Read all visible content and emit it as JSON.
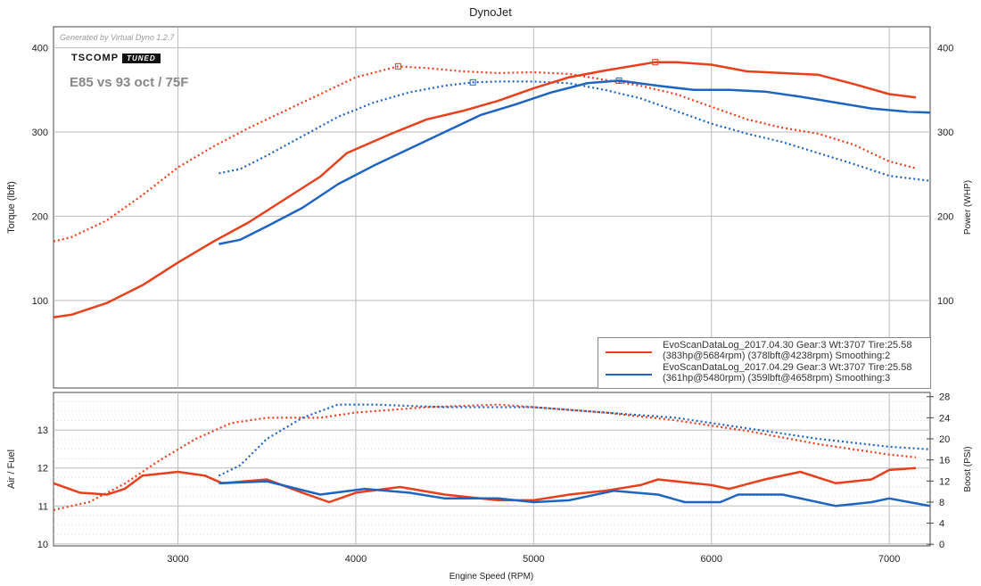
{
  "title": "DynoJet",
  "generated": "Generated by Virtual Dyno 1.2.7",
  "logo": {
    "brand": "TSCOMP",
    "tag": "TUNED"
  },
  "subtitle": "E85 vs 93 oct / 75F",
  "legend": [
    {
      "line1": "EvoScanDataLog_2017.04.30 Gear:3 Wt:3707 Tire:25.58",
      "line2": "(383hp@5684rpm) (378lbft@4238rpm) Smoothing:2",
      "color": "#e8401c"
    },
    {
      "line1": "EvoScanDataLog_2017.04.29 Gear:3 Wt:3707 Tire:25.58",
      "line2": "(361hp@5480rpm) (359lbft@4658rpm) Smoothing:3",
      "color": "#1f64c0"
    }
  ],
  "chart_data": [
    {
      "type": "line",
      "title": "DynoJet",
      "xlabel": "Engine Speed (RPM)",
      "ylabel": "Torque (lbft)",
      "y2label": "Power (WHP)",
      "xlim": [
        2300,
        7230
      ],
      "ylim": [
        -4,
        425
      ],
      "xticks": [
        3000,
        4000,
        5000,
        6000,
        7000
      ],
      "yticks": [
        100,
        200,
        300,
        400
      ],
      "series": [
        {
          "name": "Torque 2017.04.30",
          "color": "#e8401c",
          "dash": true,
          "peak": [
            4238,
            378
          ],
          "points": [
            [
              2300,
              170
            ],
            [
              2400,
              175
            ],
            [
              2600,
              195
            ],
            [
              2800,
              225
            ],
            [
              3000,
              258
            ],
            [
              3200,
              283
            ],
            [
              3400,
              305
            ],
            [
              3600,
              325
            ],
            [
              3800,
              345
            ],
            [
              4000,
              365
            ],
            [
              4238,
              378
            ],
            [
              4400,
              376
            ],
            [
              4600,
              372
            ],
            [
              4800,
              370
            ],
            [
              5000,
              371
            ],
            [
              5200,
              369
            ],
            [
              5400,
              362
            ],
            [
              5600,
              355
            ],
            [
              5800,
              345
            ],
            [
              6000,
              330
            ],
            [
              6200,
              315
            ],
            [
              6400,
              305
            ],
            [
              6600,
              298
            ],
            [
              6800,
              285
            ],
            [
              7000,
              265
            ],
            [
              7150,
              257
            ]
          ]
        },
        {
          "name": "Torque 2017.04.29",
          "color": "#1f64c0",
          "dash": true,
          "peak": [
            4658,
            359
          ],
          "points": [
            [
              3230,
              251
            ],
            [
              3350,
              256
            ],
            [
              3500,
              272
            ],
            [
              3700,
              295
            ],
            [
              3900,
              318
            ],
            [
              4100,
              335
            ],
            [
              4300,
              347
            ],
            [
              4500,
              355
            ],
            [
              4658,
              359
            ],
            [
              4800,
              360
            ],
            [
              5000,
              360
            ],
            [
              5200,
              358
            ],
            [
              5400,
              350
            ],
            [
              5600,
              340
            ],
            [
              5800,
              325
            ],
            [
              6000,
              310
            ],
            [
              6200,
              298
            ],
            [
              6400,
              288
            ],
            [
              6600,
              275
            ],
            [
              6800,
              262
            ],
            [
              7000,
              248
            ],
            [
              7230,
              242
            ]
          ]
        },
        {
          "name": "Power 2017.04.30",
          "color": "#e8401c",
          "dash": false,
          "peak": [
            5684,
            383
          ],
          "points": [
            [
              2300,
              80
            ],
            [
              2400,
              83
            ],
            [
              2600,
              97
            ],
            [
              2800,
              118
            ],
            [
              3000,
              145
            ],
            [
              3200,
              170
            ],
            [
              3400,
              193
            ],
            [
              3600,
              220
            ],
            [
              3800,
              247
            ],
            [
              3950,
              275
            ],
            [
              4200,
              298
            ],
            [
              4400,
              315
            ],
            [
              4600,
              325
            ],
            [
              4800,
              337
            ],
            [
              5000,
              352
            ],
            [
              5200,
              365
            ],
            [
              5400,
              373
            ],
            [
              5684,
              383
            ],
            [
              5800,
              383
            ],
            [
              6000,
              380
            ],
            [
              6200,
              372
            ],
            [
              6400,
              370
            ],
            [
              6600,
              368
            ],
            [
              6800,
              357
            ],
            [
              7000,
              345
            ],
            [
              7150,
              341
            ]
          ]
        },
        {
          "name": "Power 2017.04.29",
          "color": "#1f64c0",
          "dash": false,
          "peak": [
            5480,
            361
          ],
          "points": [
            [
              3230,
              167
            ],
            [
              3350,
              172
            ],
            [
              3500,
              188
            ],
            [
              3700,
              210
            ],
            [
              3900,
              238
            ],
            [
              4100,
              260
            ],
            [
              4300,
              280
            ],
            [
              4500,
              300
            ],
            [
              4700,
              320
            ],
            [
              4900,
              333
            ],
            [
              5100,
              347
            ],
            [
              5300,
              358
            ],
            [
              5480,
              361
            ],
            [
              5700,
              355
            ],
            [
              5900,
              350
            ],
            [
              6100,
              350
            ],
            [
              6300,
              348
            ],
            [
              6500,
              342
            ],
            [
              6700,
              335
            ],
            [
              6900,
              328
            ],
            [
              7100,
              324
            ],
            [
              7230,
              323
            ]
          ]
        }
      ]
    },
    {
      "type": "line",
      "xlabel": "Engine Speed (RPM)",
      "ylabel": "Air / Fuel",
      "y2label": "Boost (PSI)",
      "xlim": [
        2300,
        7230
      ],
      "ylim": [
        9.95,
        13.99
      ],
      "y2lim": [
        -0.3,
        28.8
      ],
      "yticks": [
        10,
        11,
        12,
        13
      ],
      "y2ticks": [
        0,
        4,
        8,
        12,
        16,
        20,
        24,
        28
      ],
      "series": [
        {
          "name": "AFR 2017.04.30",
          "axis": "left",
          "color": "#e8401c",
          "dash": false,
          "points": [
            [
              2300,
              11.6
            ],
            [
              2450,
              11.35
            ],
            [
              2600,
              11.3
            ],
            [
              2700,
              11.45
            ],
            [
              2800,
              11.8
            ],
            [
              3000,
              11.9
            ],
            [
              3150,
              11.8
            ],
            [
              3250,
              11.6
            ],
            [
              3500,
              11.7
            ],
            [
              3700,
              11.35
            ],
            [
              3850,
              11.1
            ],
            [
              4000,
              11.35
            ],
            [
              4250,
              11.5
            ],
            [
              4500,
              11.3
            ],
            [
              4800,
              11.15
            ],
            [
              5000,
              11.15
            ],
            [
              5200,
              11.3
            ],
            [
              5400,
              11.4
            ],
            [
              5600,
              11.55
            ],
            [
              5700,
              11.7
            ],
            [
              6000,
              11.55
            ],
            [
              6100,
              11.45
            ],
            [
              6300,
              11.7
            ],
            [
              6500,
              11.9
            ],
            [
              6700,
              11.6
            ],
            [
              6900,
              11.7
            ],
            [
              7000,
              11.95
            ],
            [
              7150,
              12.0
            ]
          ]
        },
        {
          "name": "AFR 2017.04.29",
          "axis": "left",
          "color": "#1f64c0",
          "dash": false,
          "points": [
            [
              3230,
              11.6
            ],
            [
              3500,
              11.65
            ],
            [
              3800,
              11.3
            ],
            [
              4050,
              11.45
            ],
            [
              4300,
              11.35
            ],
            [
              4500,
              11.2
            ],
            [
              4800,
              11.2
            ],
            [
              5000,
              11.1
            ],
            [
              5200,
              11.15
            ],
            [
              5450,
              11.4
            ],
            [
              5700,
              11.3
            ],
            [
              5850,
              11.1
            ],
            [
              6050,
              11.1
            ],
            [
              6150,
              11.3
            ],
            [
              6400,
              11.3
            ],
            [
              6700,
              11.0
            ],
            [
              6900,
              11.1
            ],
            [
              7000,
              11.2
            ],
            [
              7230,
              11.0
            ]
          ]
        },
        {
          "name": "Boost 2017.04.30",
          "axis": "right",
          "color": "#e8401c",
          "dash": true,
          "points": [
            [
              2300,
              6.5
            ],
            [
              2500,
              8
            ],
            [
              2700,
              11.5
            ],
            [
              2900,
              16
            ],
            [
              3100,
              20
            ],
            [
              3300,
              23
            ],
            [
              3500,
              24
            ],
            [
              3800,
              24
            ],
            [
              4000,
              25
            ],
            [
              4400,
              26
            ],
            [
              4800,
              26.5
            ],
            [
              5000,
              26
            ],
            [
              5400,
              25
            ],
            [
              5800,
              23.5
            ],
            [
              6200,
              21.5
            ],
            [
              6600,
              19
            ],
            [
              7000,
              17
            ],
            [
              7150,
              16.5
            ]
          ]
        },
        {
          "name": "Boost 2017.04.29",
          "axis": "right",
          "color": "#1f64c0",
          "dash": true,
          "points": [
            [
              3230,
              13
            ],
            [
              3350,
              15
            ],
            [
              3500,
              20
            ],
            [
              3700,
              24
            ],
            [
              3900,
              26.5
            ],
            [
              4100,
              26.5
            ],
            [
              4500,
              26
            ],
            [
              5000,
              26
            ],
            [
              5400,
              25
            ],
            [
              5800,
              24
            ],
            [
              6200,
              22
            ],
            [
              6600,
              20
            ],
            [
              7000,
              18.5
            ],
            [
              7230,
              18
            ]
          ]
        }
      ]
    }
  ]
}
